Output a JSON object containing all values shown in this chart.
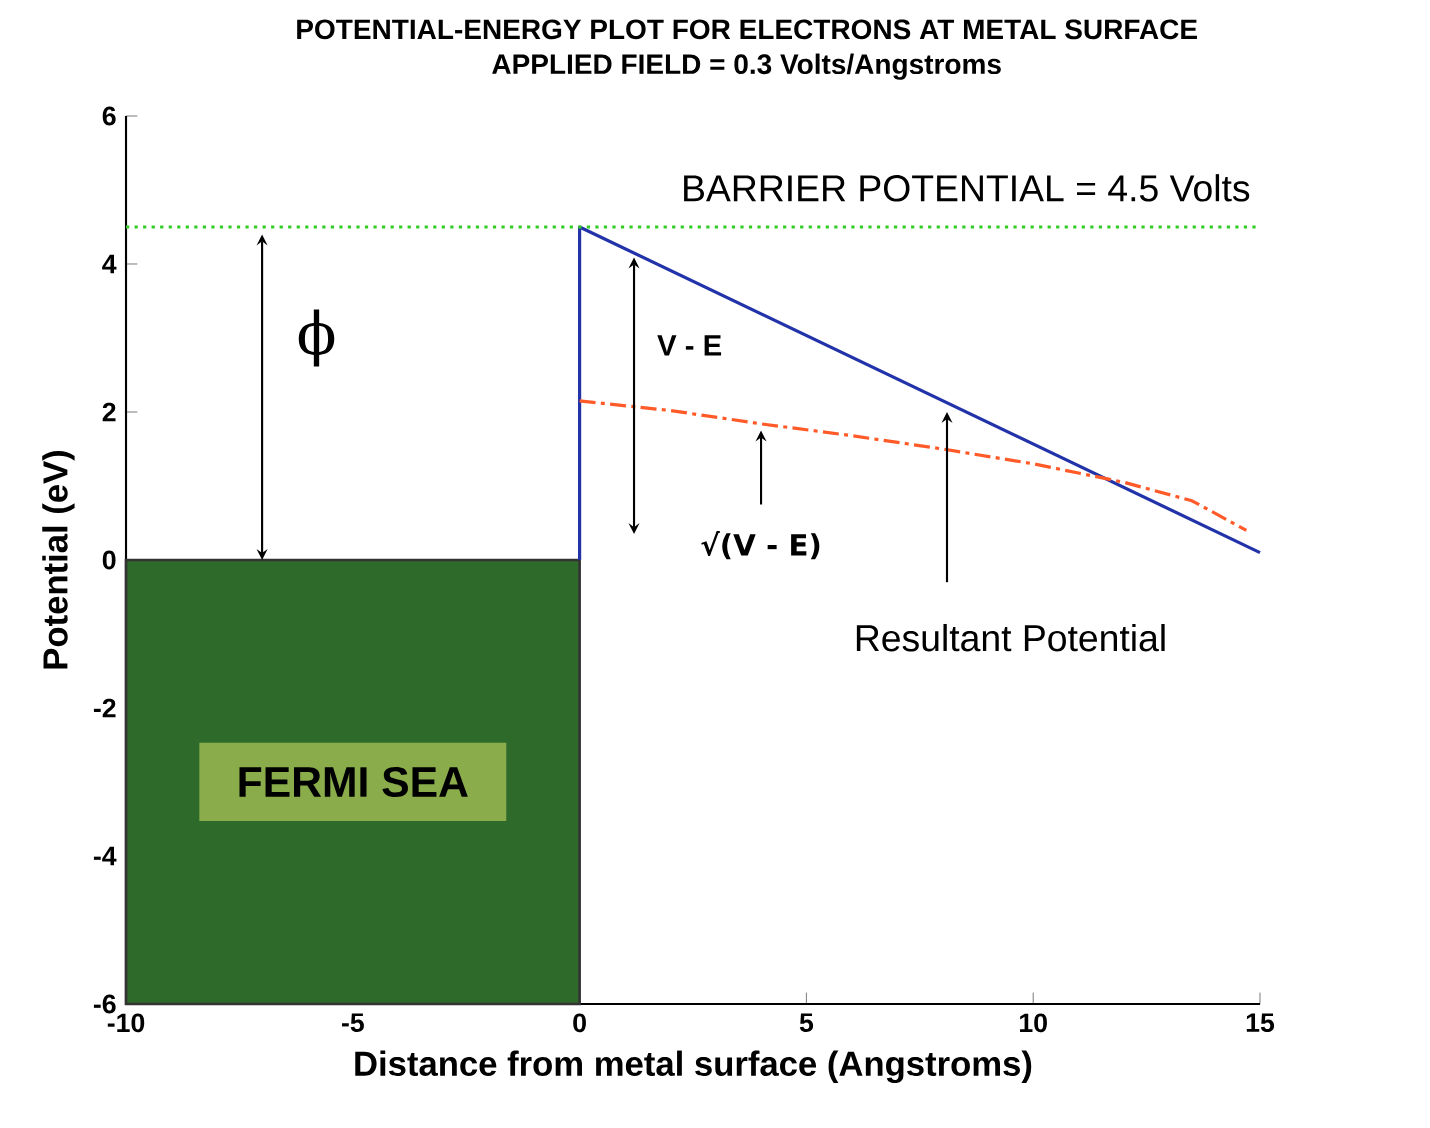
{
  "chart_data": {
    "type": "line",
    "title": "POTENTIAL-ENERGY PLOT FOR ELECTRONS AT METAL SURFACE",
    "subtitle": "APPLIED FIELD = 0.3 Volts/Angstroms",
    "xlabel": "Distance from metal surface (Angstroms)",
    "ylabel": "Potential (eV)",
    "xlim": [
      -10,
      15
    ],
    "ylim": [
      -6,
      6
    ],
    "xticks": [
      -10,
      -5,
      0,
      5,
      10,
      15
    ],
    "yticks": [
      -6,
      -4,
      -2,
      0,
      2,
      4,
      6
    ],
    "grid": false,
    "series": [
      {
        "name": "FERMI SEA",
        "type": "area",
        "color": "#2e6b2a",
        "x": [
          -10,
          -10,
          0,
          0
        ],
        "values": [
          -6,
          0,
          0,
          -6
        ]
      },
      {
        "color": "#2233aa",
        "line_style": "solid",
        "x": [
          0,
          0,
          15
        ],
        "values": [
          0,
          4.5,
          0.1
        ]
      },
      {
        "color": "#ff5a28",
        "line_style": "dashdot",
        "x": [
          0,
          2,
          4,
          6,
          8,
          10,
          12,
          13.5,
          14.7
        ],
        "values": [
          2.15,
          2.02,
          1.84,
          1.68,
          1.5,
          1.3,
          1.05,
          0.8,
          0.4
        ]
      }
    ],
    "ref_lines": [
      {
        "axis": "y",
        "value": 4.5,
        "label": "BARRIER POTENTIAL = 4.5 Volts",
        "color": "#33cc22",
        "line_style": "dotted"
      }
    ],
    "annotations": [
      {
        "text": "ϕ",
        "x": -7,
        "y": 4.4
      },
      "V - E",
      {
        "text": "√(V - E)",
        "x": 4,
        "y": 1.75
      },
      {
        "text": "Resultant Potential",
        "x": 8.1,
        "y": 2.0
      }
    ]
  }
}
